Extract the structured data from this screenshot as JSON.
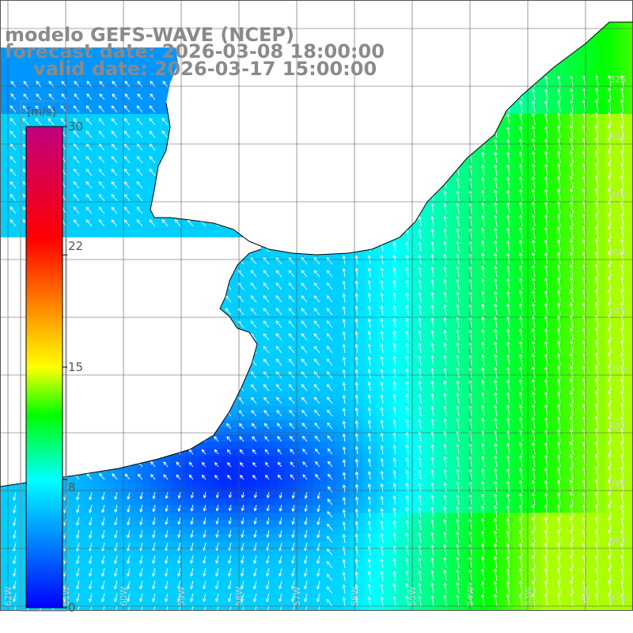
{
  "title": {
    "model": "modelo GEFS-WAVE (NCEP)",
    "forecast": "forecast date: 2026-03-08 18:00:00",
    "valid": "valid date: 2026-03-17 15:00:00"
  },
  "colorbar": {
    "unit": "[m/s]",
    "ticks": [
      {
        "value": 30,
        "label": "30"
      },
      {
        "value": 22,
        "label": "22"
      },
      {
        "value": 15,
        "label": "15"
      },
      {
        "value": 8,
        "label": "8"
      },
      {
        "value": 0,
        "label": "0"
      }
    ],
    "range": [
      0,
      30
    ],
    "stops": [
      {
        "value": 0,
        "color": "#0000ff"
      },
      {
        "value": 4,
        "color": "#0080ff"
      },
      {
        "value": 8,
        "color": "#00ffff"
      },
      {
        "value": 12,
        "color": "#00ff00"
      },
      {
        "value": 15,
        "color": "#ffff00"
      },
      {
        "value": 19,
        "color": "#ff8000"
      },
      {
        "value": 23,
        "color": "#ff0000"
      },
      {
        "value": 30,
        "color": "#c0007f"
      }
    ]
  },
  "map": {
    "grid": true,
    "ocean_land_mask": "land white, ocean colored by wind speed",
    "right_axis_labels": [
      "32S",
      "33S",
      "34S",
      "35S",
      "36S",
      "37S",
      "38S",
      "39S",
      "40S",
      "41S"
    ],
    "bottom_axis_labels": [
      "62W",
      "61W",
      "60W",
      "59W",
      "58W",
      "57W",
      "56W",
      "55W",
      "54W",
      "53W",
      "52W"
    ]
  }
}
